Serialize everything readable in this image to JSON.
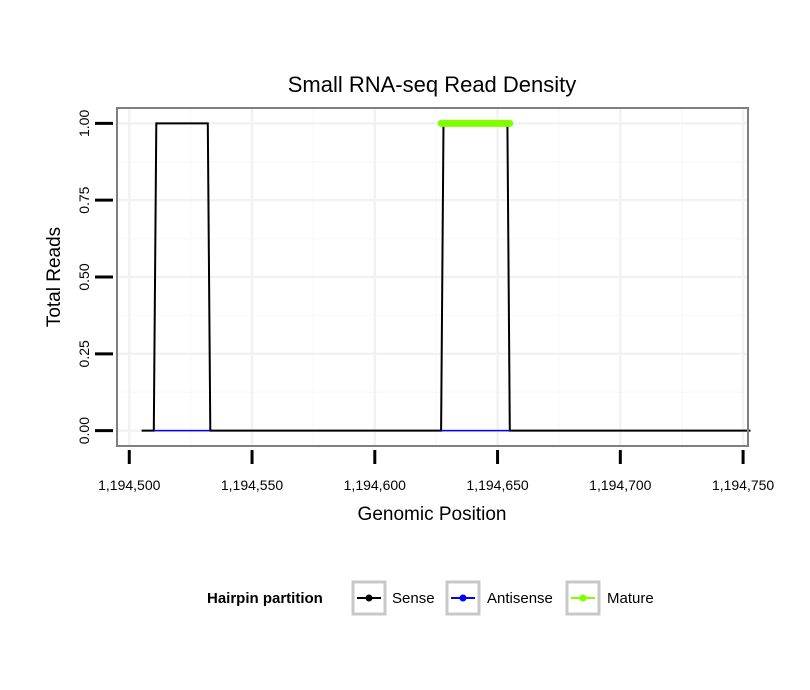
{
  "chart_data": {
    "type": "line",
    "title": "Small RNA-seq Read Density",
    "xlabel": "Genomic Position",
    "ylabel": "Total Reads",
    "xlim": [
      1194495,
      1194752
    ],
    "ylim": [
      -0.05,
      1.05
    ],
    "x_ticks": [
      1194500,
      1194550,
      1194600,
      1194650,
      1194700,
      1194750
    ],
    "x_tick_labels": [
      "1,194,500",
      "1,194,550",
      "1,194,600",
      "1,194,650",
      "1,194,700",
      "1,194,750"
    ],
    "y_ticks": [
      0,
      0.25,
      0.5,
      0.75,
      1.0
    ],
    "y_tick_labels": [
      "0.00",
      "0.25",
      "0.50",
      "0.75",
      "1.00"
    ],
    "grid": true,
    "legend_position": "bottom",
    "legend_title": "Hairpin partition",
    "series": [
      {
        "name": "Sense",
        "color": "#000000",
        "x": [
          1194505,
          1194510,
          1194511,
          1194532,
          1194533,
          1194627,
          1194628,
          1194654,
          1194655,
          1194753
        ],
        "y": [
          0,
          0,
          1,
          1,
          0,
          0,
          1,
          1,
          0,
          0
        ]
      },
      {
        "name": "Antisense",
        "color": "#0000ff",
        "x": [
          1194510,
          1194533,
          1194627,
          1194655
        ],
        "y": [
          0,
          0,
          0,
          0
        ],
        "segments": [
          [
            1194510,
            1194533
          ],
          [
            1194627,
            1194655
          ]
        ]
      },
      {
        "name": "Mature",
        "color": "#7fff00",
        "x": [
          1194627,
          1194655
        ],
        "y": [
          1,
          1
        ]
      }
    ]
  }
}
